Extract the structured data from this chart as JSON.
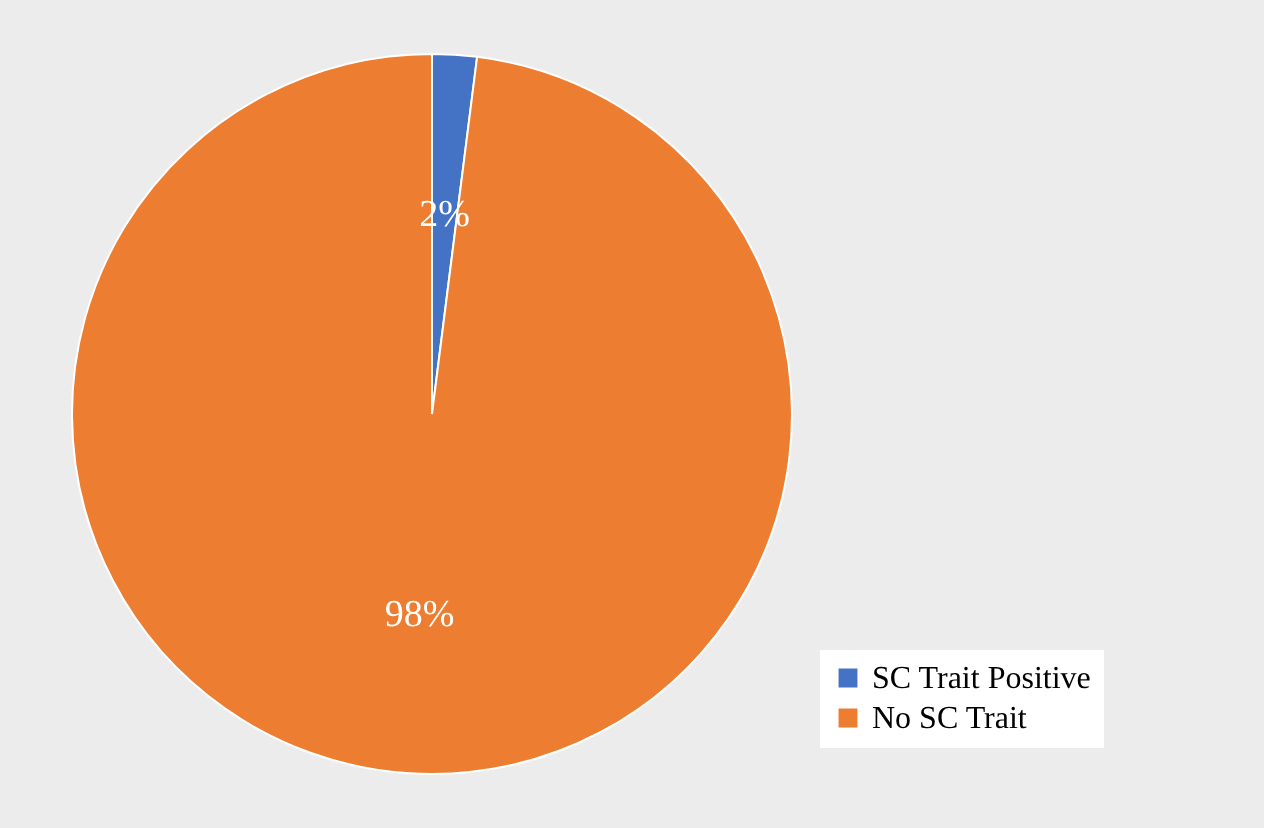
{
  "chart_data": {
    "type": "pie",
    "categories": [
      "SC Trait Positive",
      "No SC Trait"
    ],
    "values": [
      2,
      98
    ],
    "colors": [
      "#4472c4",
      "#ed7d31"
    ],
    "value_labels": [
      "2%",
      "98%"
    ],
    "legend": "bottom right"
  }
}
